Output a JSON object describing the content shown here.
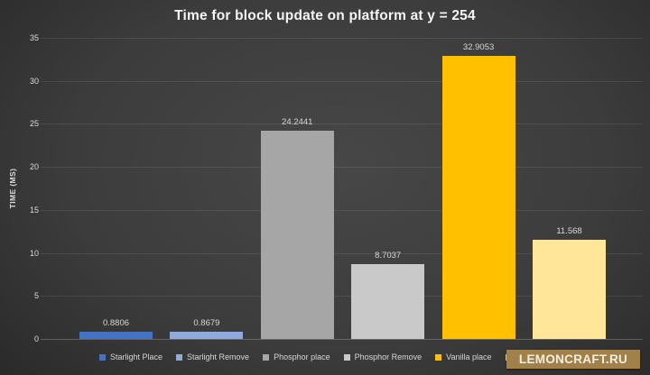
{
  "title": "Time for block update on platform at y = 254",
  "chart_data": {
    "type": "bar",
    "title": "Time for block update on platform at y = 254",
    "ylabel": "TIME (MS)",
    "ylim": [
      0,
      35
    ],
    "y_ticks": [
      0,
      5,
      10,
      15,
      20,
      25,
      30,
      35
    ],
    "grid": true,
    "legend_position": "bottom",
    "categories": [
      "Starlight Place",
      "Starlight Remove",
      "Phosphor place",
      "Phosphor Remove",
      "Vanilla place",
      ""
    ],
    "values": [
      0.8806,
      0.8679,
      24.2441,
      8.7037,
      32.9053,
      11.568
    ],
    "data_labels": [
      "0.8806",
      "0.8679",
      "24.2441",
      "8.7037",
      "32.9053",
      "11.568"
    ],
    "colors": [
      "#4472C4",
      "#8FAADC",
      "#A6A6A6",
      "#C9C9C9",
      "#FFC000",
      "#FFE699"
    ]
  },
  "legend": {
    "items": [
      {
        "label": "Starlight Place",
        "color": "#4472C4"
      },
      {
        "label": "Starlight Remove",
        "color": "#8FAADC"
      },
      {
        "label": "Phosphor place",
        "color": "#A6A6A6"
      },
      {
        "label": "Phosphor Remove",
        "color": "#C9C9C9"
      },
      {
        "label": "Vanilla place",
        "color": "#FFC000"
      },
      {
        "label": "",
        "color": "#FFE699"
      }
    ]
  },
  "watermark": {
    "text": "LEMONCRAFT.RU",
    "background_color": "#A1814A",
    "text_color": "#F6EEDC"
  }
}
